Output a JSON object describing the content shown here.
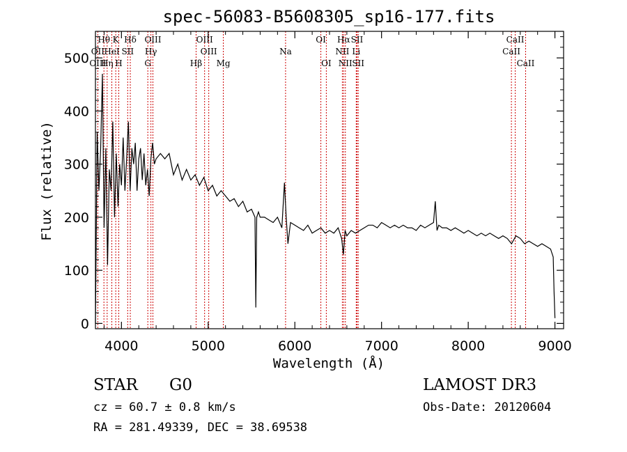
{
  "chart_data": {
    "type": "line",
    "title": "spec-56083-B5608305_sp16-177.fits",
    "xlabel": "Wavelength (Å)",
    "ylabel": "Flux (relative)",
    "xlim": [
      3700,
      9100
    ],
    "ylim": [
      -10,
      550
    ],
    "xticks": [
      4000,
      5000,
      6000,
      7000,
      8000,
      9000
    ],
    "yticks": [
      0,
      100,
      200,
      300,
      400,
      500
    ],
    "series": [
      {
        "name": "spectrum",
        "x": [
          3700,
          3720,
          3740,
          3760,
          3780,
          3800,
          3820,
          3840,
          3860,
          3880,
          3900,
          3920,
          3940,
          3960,
          3980,
          4000,
          4020,
          4040,
          4060,
          4080,
          4100,
          4120,
          4140,
          4160,
          4180,
          4200,
          4220,
          4240,
          4260,
          4280,
          4300,
          4320,
          4340,
          4360,
          4380,
          4400,
          4450,
          4500,
          4550,
          4600,
          4650,
          4700,
          4750,
          4800,
          4850,
          4900,
          4950,
          5000,
          5050,
          5100,
          5150,
          5200,
          5250,
          5300,
          5350,
          5400,
          5450,
          5500,
          5540,
          5550,
          5560,
          5580,
          5600,
          5650,
          5700,
          5750,
          5800,
          5850,
          5880,
          5900,
          5920,
          5950,
          6000,
          6050,
          6100,
          6150,
          6200,
          6250,
          6300,
          6350,
          6400,
          6450,
          6500,
          6540,
          6560,
          6580,
          6600,
          6650,
          6700,
          6750,
          6800,
          6850,
          6900,
          6950,
          7000,
          7050,
          7100,
          7150,
          7200,
          7250,
          7300,
          7350,
          7400,
          7450,
          7500,
          7550,
          7600,
          7620,
          7640,
          7660,
          7700,
          7750,
          7800,
          7850,
          7900,
          7950,
          8000,
          8050,
          8100,
          8150,
          8200,
          8250,
          8300,
          8350,
          8400,
          8450,
          8500,
          8550,
          8600,
          8650,
          8700,
          8750,
          8800,
          8850,
          8900,
          8950,
          8980,
          8990,
          9000
        ],
        "values": [
          0,
          360,
          250,
          330,
          470,
          180,
          330,
          110,
          290,
          250,
          380,
          200,
          320,
          220,
          300,
          260,
          350,
          250,
          310,
          380,
          250,
          330,
          300,
          340,
          250,
          310,
          330,
          270,
          320,
          260,
          290,
          240,
          310,
          340,
          300,
          310,
          320,
          310,
          320,
          280,
          300,
          270,
          290,
          270,
          280,
          260,
          275,
          250,
          260,
          240,
          250,
          240,
          230,
          235,
          220,
          230,
          210,
          215,
          200,
          30,
          200,
          210,
          200,
          200,
          195,
          190,
          200,
          180,
          265,
          200,
          150,
          190,
          185,
          180,
          175,
          185,
          170,
          175,
          180,
          170,
          175,
          170,
          180,
          160,
          130,
          175,
          165,
          175,
          170,
          175,
          180,
          185,
          185,
          180,
          190,
          185,
          180,
          185,
          180,
          185,
          180,
          180,
          175,
          185,
          180,
          185,
          190,
          230,
          175,
          185,
          180,
          180,
          175,
          180,
          175,
          170,
          175,
          170,
          165,
          170,
          165,
          170,
          165,
          160,
          165,
          160,
          150,
          165,
          160,
          150,
          155,
          150,
          145,
          150,
          145,
          140,
          125,
          60,
          10
        ]
      }
    ],
    "line_labels": [
      {
        "text": "Hθ",
        "wavelength": 3798,
        "row": 1
      },
      {
        "text": "K",
        "wavelength": 3934,
        "row": 1
      },
      {
        "text": "Hδ",
        "wavelength": 4102,
        "row": 1
      },
      {
        "text": "OIII",
        "wavelength": 4363,
        "row": 1
      },
      {
        "text": "OIII",
        "wavelength": 4959,
        "row": 1
      },
      {
        "text": "OI",
        "wavelength": 6300,
        "row": 1
      },
      {
        "text": "Hα",
        "wavelength": 6563,
        "row": 1
      },
      {
        "text": "SII",
        "wavelength": 6717,
        "row": 1
      },
      {
        "text": "CaII",
        "wavelength": 8542,
        "row": 1
      },
      {
        "text": "OII",
        "wavelength": 3727,
        "row": 2
      },
      {
        "text": "HeI",
        "wavelength": 3889,
        "row": 2
      },
      {
        "text": "SII",
        "wavelength": 4072,
        "row": 2
      },
      {
        "text": "Hγ",
        "wavelength": 4340,
        "row": 2
      },
      {
        "text": "OIII",
        "wavelength": 5007,
        "row": 2
      },
      {
        "text": "Na",
        "wavelength": 5893,
        "row": 2
      },
      {
        "text": "NII",
        "wavelength": 6548,
        "row": 2
      },
      {
        "text": "Li",
        "wavelength": 6708,
        "row": 2
      },
      {
        "text": "CaII",
        "wavelength": 8498,
        "row": 2
      },
      {
        "text": "OIII",
        "wavelength": 3727,
        "row": 3
      },
      {
        "text": "Hη",
        "wavelength": 3835,
        "row": 3
      },
      {
        "text": "H",
        "wavelength": 3969,
        "row": 3
      },
      {
        "text": "G",
        "wavelength": 4304,
        "row": 3
      },
      {
        "text": "Hβ",
        "wavelength": 4861,
        "row": 3
      },
      {
        "text": "Mg",
        "wavelength": 5175,
        "row": 3
      },
      {
        "text": "OI",
        "wavelength": 6363,
        "row": 3
      },
      {
        "text": "NII",
        "wavelength": 6583,
        "row": 3
      },
      {
        "text": "SII",
        "wavelength": 6731,
        "row": 3
      },
      {
        "text": "CaII",
        "wavelength": 8662,
        "row": 3
      }
    ],
    "line_markers": [
      3727,
      3798,
      3835,
      3889,
      3934,
      3969,
      4072,
      4102,
      4304,
      4340,
      4363,
      4861,
      4959,
      5007,
      5175,
      5893,
      6300,
      6363,
      6548,
      6563,
      6583,
      6708,
      6717,
      6731,
      8498,
      8542,
      8662
    ],
    "colors": {
      "spectrum": "#000000",
      "markers": "#cc0000",
      "axes": "#000000"
    }
  },
  "info": {
    "class_label": "STAR",
    "subclass": "G0",
    "survey": "LAMOST DR3",
    "cz": "cz = 60.7 ± 0.8 km/s",
    "obs_date": "Obs-Date: 20120604",
    "radec": "RA = 281.49339, DEC =  38.69538"
  }
}
